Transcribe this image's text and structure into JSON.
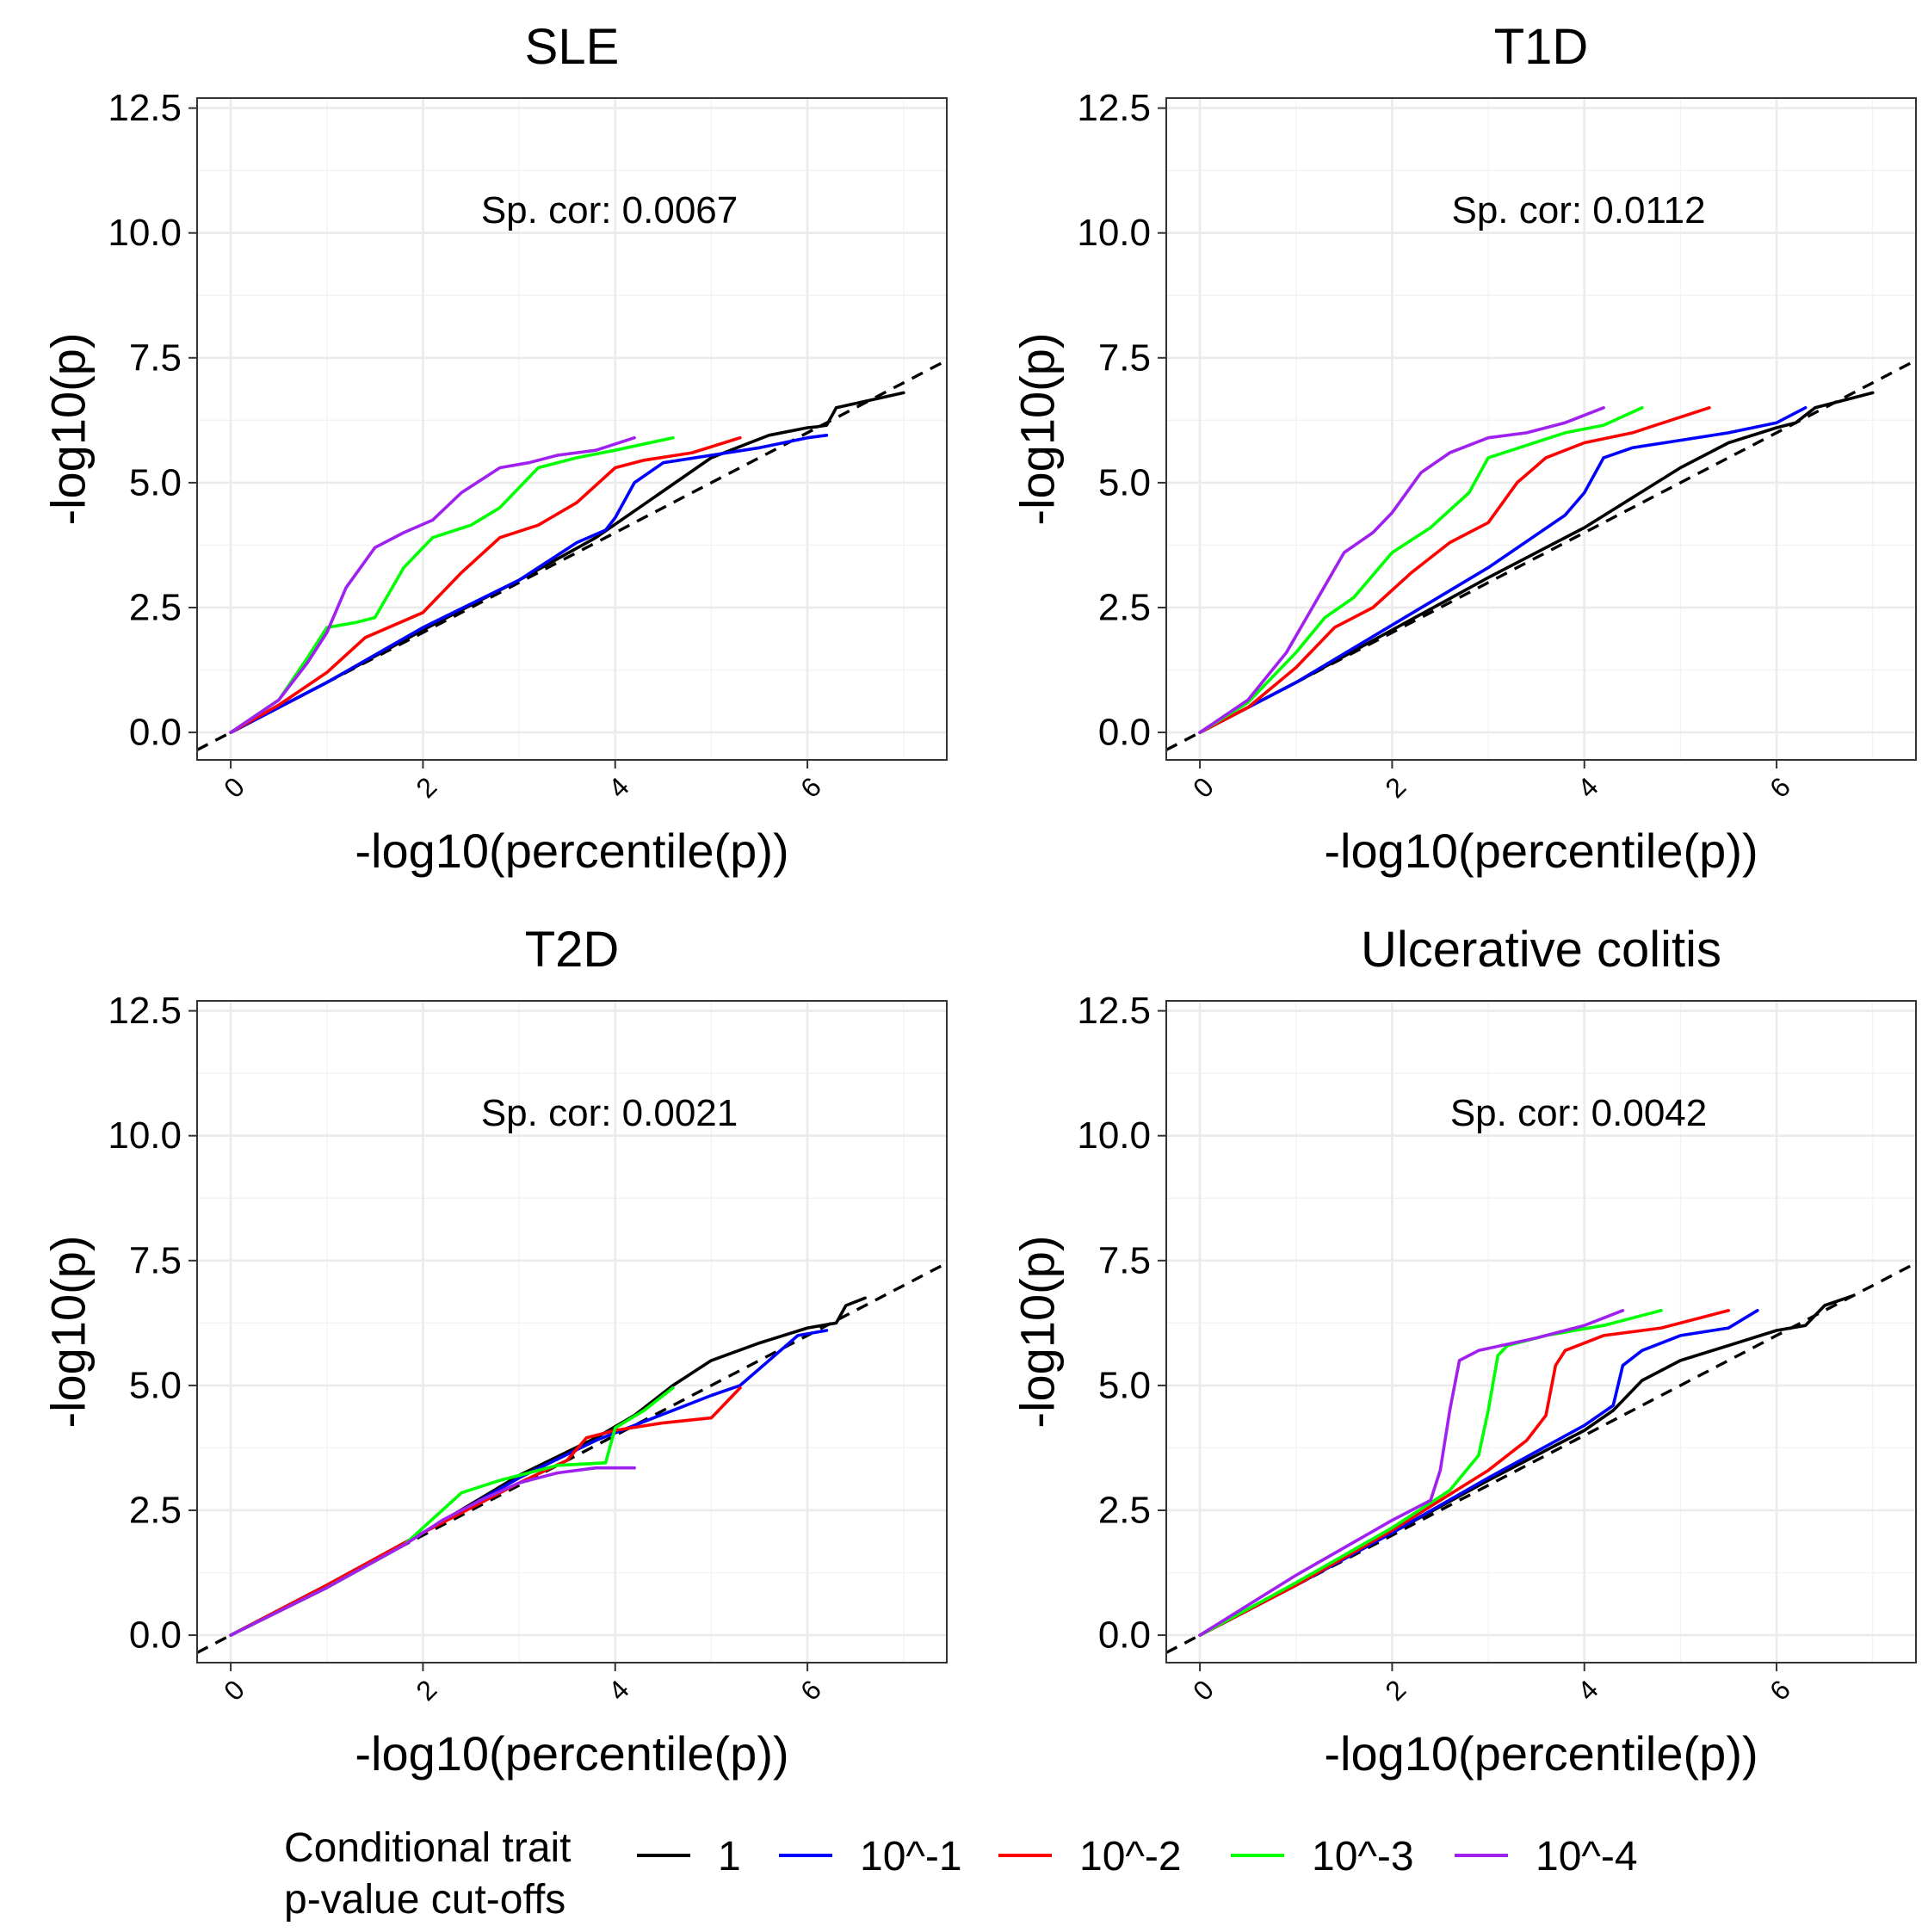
{
  "legend": {
    "title_line1": "Conditional trait",
    "title_line2": "p-value cut-offs",
    "entries": [
      {
        "label": "1",
        "color": "#000000"
      },
      {
        "label": "10^-1",
        "color": "#0000ff"
      },
      {
        "label": "10^-2",
        "color": "#ff0000"
      },
      {
        "label": "10^-3",
        "color": "#00ff00"
      },
      {
        "label": "10^-4",
        "color": "#a020f0"
      }
    ]
  },
  "chart_data": [
    {
      "type": "line",
      "title": "SLE",
      "xlabel": "-log10(percentile(p))",
      "ylabel": "-log10(p)",
      "xlim": [
        -0.35,
        7.45
      ],
      "ylim": [
        -0.55,
        12.7
      ],
      "x_ticks": [
        "0",
        "2",
        "4",
        "6"
      ],
      "y_ticks": [
        "0.0",
        "2.5",
        "5.0",
        "7.5",
        "10.0",
        "12.5"
      ],
      "annotation": "Sp. cor: 0.0067",
      "reference_line": {
        "slope": 1,
        "intercept": 0
      },
      "series": [
        {
          "name": "1",
          "x": [
            0,
            1,
            2,
            3,
            3.8,
            4.4,
            5.0,
            5.6,
            6.0,
            6.1,
            6.2,
            6.3,
            7.0
          ],
          "y": [
            0,
            1.0,
            2.05,
            3.05,
            3.9,
            4.7,
            5.5,
            5.95,
            6.1,
            6.12,
            6.15,
            6.5,
            6.8
          ]
        },
        {
          "name": "10^-1",
          "x": [
            0,
            1,
            2,
            3,
            3.6,
            3.9,
            4.0,
            4.2,
            4.5,
            5.0,
            5.5,
            6.0,
            6.2
          ],
          "y": [
            0,
            1.0,
            2.1,
            3.05,
            3.8,
            4.05,
            4.3,
            5.0,
            5.4,
            5.55,
            5.7,
            5.9,
            5.95
          ]
        },
        {
          "name": "10^-2",
          "x": [
            0,
            0.5,
            1.0,
            1.4,
            1.7,
            2.0,
            2.4,
            2.8,
            3.2,
            3.6,
            4.0,
            4.3,
            4.8,
            5.3
          ],
          "y": [
            0,
            0.55,
            1.2,
            1.9,
            2.15,
            2.4,
            3.2,
            3.9,
            4.15,
            4.6,
            5.3,
            5.45,
            5.6,
            5.9
          ]
        },
        {
          "name": "10^-3",
          "x": [
            0,
            0.5,
            0.8,
            1.0,
            1.3,
            1.5,
            1.8,
            2.1,
            2.5,
            2.8,
            3.2,
            3.6,
            4.0,
            4.6
          ],
          "y": [
            0,
            0.65,
            1.5,
            2.1,
            2.2,
            2.3,
            3.3,
            3.9,
            4.15,
            4.5,
            5.3,
            5.5,
            5.65,
            5.9
          ]
        },
        {
          "name": "10^-4",
          "x": [
            0,
            0.5,
            0.8,
            1.0,
            1.2,
            1.5,
            1.8,
            2.1,
            2.4,
            2.8,
            3.1,
            3.4,
            3.8,
            4.2
          ],
          "y": [
            0,
            0.65,
            1.4,
            2.0,
            2.9,
            3.7,
            4.0,
            4.25,
            4.8,
            5.3,
            5.4,
            5.55,
            5.65,
            5.9
          ]
        }
      ]
    },
    {
      "type": "line",
      "title": "T1D",
      "xlabel": "-log10(percentile(p))",
      "ylabel": "-log10(p)",
      "xlim": [
        -0.35,
        7.45
      ],
      "ylim": [
        -0.55,
        12.7
      ],
      "x_ticks": [
        "0",
        "2",
        "4",
        "6"
      ],
      "y_ticks": [
        "0.0",
        "2.5",
        "5.0",
        "7.5",
        "10.0",
        "12.5"
      ],
      "annotation": "Sp. cor: 0.0112",
      "reference_line": {
        "slope": 1,
        "intercept": 0
      },
      "series": [
        {
          "name": "1",
          "x": [
            0,
            1,
            2,
            3,
            4.0,
            4.5,
            5.0,
            5.5,
            6.0,
            6.2,
            6.4,
            7.0
          ],
          "y": [
            0,
            1.0,
            2.05,
            3.1,
            4.1,
            4.7,
            5.3,
            5.8,
            6.1,
            6.2,
            6.5,
            6.8
          ]
        },
        {
          "name": "10^-1",
          "x": [
            0,
            1,
            2,
            3,
            3.8,
            4.0,
            4.2,
            4.5,
            5.0,
            5.5,
            6.0,
            6.3
          ],
          "y": [
            0,
            1.0,
            2.15,
            3.3,
            4.35,
            4.8,
            5.5,
            5.7,
            5.85,
            6.0,
            6.2,
            6.5
          ]
        },
        {
          "name": "10^-2",
          "x": [
            0,
            0.5,
            1.0,
            1.4,
            1.8,
            2.2,
            2.6,
            3.0,
            3.3,
            3.6,
            4.0,
            4.5,
            5.3
          ],
          "y": [
            0,
            0.5,
            1.3,
            2.1,
            2.5,
            3.2,
            3.8,
            4.2,
            5.0,
            5.5,
            5.8,
            6.0,
            6.5
          ]
        },
        {
          "name": "10^-3",
          "x": [
            0,
            0.5,
            1.0,
            1.3,
            1.6,
            2.0,
            2.4,
            2.8,
            3.0,
            3.4,
            3.8,
            4.2,
            4.6
          ],
          "y": [
            0,
            0.6,
            1.6,
            2.3,
            2.7,
            3.6,
            4.1,
            4.8,
            5.5,
            5.75,
            6.0,
            6.15,
            6.5
          ]
        },
        {
          "name": "10^-4",
          "x": [
            0,
            0.5,
            0.9,
            1.2,
            1.5,
            1.8,
            2.0,
            2.3,
            2.6,
            3.0,
            3.4,
            3.8,
            4.2
          ],
          "y": [
            0,
            0.65,
            1.6,
            2.6,
            3.6,
            4.0,
            4.4,
            5.2,
            5.6,
            5.9,
            6.0,
            6.2,
            6.5
          ]
        }
      ]
    },
    {
      "type": "line",
      "title": "T2D",
      "xlabel": "-log10(percentile(p))",
      "ylabel": "-log10(p)",
      "xlim": [
        -0.35,
        7.45
      ],
      "ylim": [
        -0.55,
        12.7
      ],
      "x_ticks": [
        "0",
        "2",
        "4",
        "6"
      ],
      "y_ticks": [
        "0.0",
        "2.5",
        "5.0",
        "7.5",
        "10.0",
        "12.5"
      ],
      "annotation": "Sp. cor: 0.0021",
      "reference_line": {
        "slope": 1,
        "intercept": 0
      },
      "series": [
        {
          "name": "1",
          "x": [
            0,
            1,
            2,
            3,
            3.8,
            4.2,
            4.6,
            5.0,
            5.5,
            6.0,
            6.3,
            6.4,
            6.6
          ],
          "y": [
            0,
            1.0,
            2.05,
            3.2,
            3.95,
            4.4,
            5.0,
            5.5,
            5.85,
            6.15,
            6.25,
            6.6,
            6.75
          ]
        },
        {
          "name": "10^-1",
          "x": [
            0,
            1,
            2,
            3,
            3.8,
            4.2,
            4.6,
            5.0,
            5.3,
            5.6,
            5.9,
            6.2
          ],
          "y": [
            0,
            1.0,
            2.05,
            3.15,
            3.9,
            4.2,
            4.5,
            4.8,
            5.0,
            5.5,
            6.0,
            6.1
          ]
        },
        {
          "name": "10^-2",
          "x": [
            0,
            1,
            2,
            3,
            3.5,
            3.7,
            4.0,
            4.5,
            5.0,
            5.3
          ],
          "y": [
            0,
            1.0,
            2.05,
            3.05,
            3.5,
            3.95,
            4.1,
            4.25,
            4.35,
            4.95
          ]
        },
        {
          "name": "10^-3",
          "x": [
            0,
            1,
            1.8,
            2.2,
            2.4,
            2.8,
            3.4,
            3.9,
            4.0,
            4.3,
            4.6
          ],
          "y": [
            0,
            0.95,
            1.8,
            2.5,
            2.85,
            3.1,
            3.4,
            3.45,
            4.15,
            4.5,
            4.95
          ]
        },
        {
          "name": "10^-4",
          "x": [
            0,
            1,
            1.8,
            2.2,
            2.6,
            3.0,
            3.4,
            3.8,
            4.2
          ],
          "y": [
            0,
            0.95,
            1.8,
            2.3,
            2.7,
            3.05,
            3.25,
            3.35,
            3.35
          ]
        }
      ]
    },
    {
      "type": "line",
      "title": "Ulcerative colitis",
      "xlabel": "-log10(percentile(p))",
      "ylabel": "-log10(p)",
      "xlim": [
        -0.35,
        7.45
      ],
      "ylim": [
        -0.55,
        12.7
      ],
      "x_ticks": [
        "0",
        "2",
        "4",
        "6"
      ],
      "y_ticks": [
        "0.0",
        "2.5",
        "5.0",
        "7.5",
        "10.0",
        "12.5"
      ],
      "annotation": "Sp. cor: 0.0042",
      "reference_line": {
        "slope": 1,
        "intercept": 0
      },
      "series": [
        {
          "name": "1",
          "x": [
            0,
            1,
            2,
            3,
            4.0,
            4.3,
            4.6,
            5.0,
            5.5,
            6.0,
            6.3,
            6.5,
            6.8
          ],
          "y": [
            0,
            1.0,
            2.05,
            3.1,
            4.1,
            4.5,
            5.1,
            5.5,
            5.8,
            6.1,
            6.2,
            6.6,
            6.8
          ]
        },
        {
          "name": "10^-1",
          "x": [
            0,
            1,
            2,
            3,
            4.0,
            4.3,
            4.4,
            4.6,
            5.0,
            5.5,
            5.8
          ],
          "y": [
            0,
            1.0,
            2.05,
            3.15,
            4.2,
            4.6,
            5.4,
            5.7,
            6.0,
            6.15,
            6.5
          ]
        },
        {
          "name": "10^-2",
          "x": [
            0,
            1,
            2,
            3,
            3.4,
            3.6,
            3.7,
            3.8,
            4.2,
            4.8,
            5.5
          ],
          "y": [
            0,
            1.0,
            2.1,
            3.3,
            3.9,
            4.4,
            5.4,
            5.7,
            6.0,
            6.15,
            6.5
          ]
        },
        {
          "name": "10^-3",
          "x": [
            0,
            1,
            2,
            2.6,
            2.9,
            3.0,
            3.1,
            3.2,
            3.6,
            4.2,
            4.8
          ],
          "y": [
            0,
            1.05,
            2.15,
            2.9,
            3.6,
            4.5,
            5.6,
            5.8,
            6.0,
            6.2,
            6.5
          ]
        },
        {
          "name": "10^-4",
          "x": [
            0,
            1,
            2,
            2.4,
            2.5,
            2.6,
            2.7,
            2.9,
            3.5,
            4.0,
            4.4
          ],
          "y": [
            0,
            1.2,
            2.3,
            2.7,
            3.3,
            4.5,
            5.5,
            5.7,
            5.95,
            6.2,
            6.5
          ]
        }
      ]
    }
  ]
}
